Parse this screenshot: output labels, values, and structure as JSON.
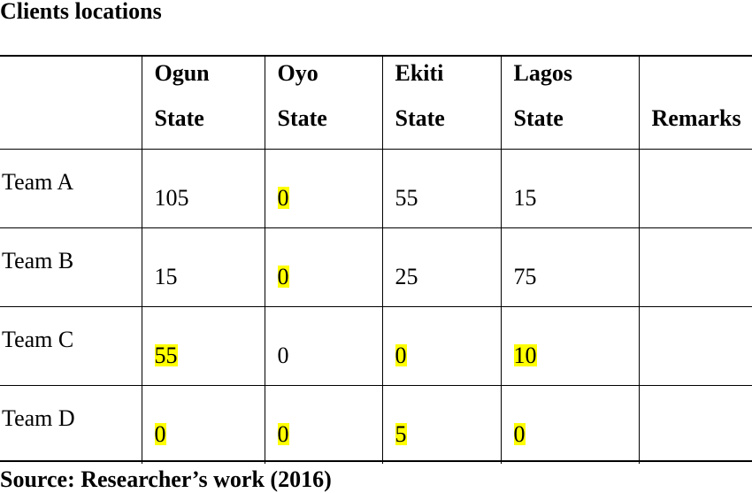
{
  "title": "Clients locations",
  "table": {
    "headers": [
      {
        "line1": "",
        "line2": ""
      },
      {
        "line1": "Ogun",
        "line2": "State"
      },
      {
        "line1": "Oyo",
        "line2": "State"
      },
      {
        "line1": "Ekiti",
        "line2": "State"
      },
      {
        "line1": "Lagos",
        "line2": "State"
      },
      {
        "line1": "",
        "line2": "Remarks"
      }
    ],
    "rows": [
      {
        "label": "Team A",
        "cells": [
          {
            "value": "105",
            "highlight": false
          },
          {
            "value": "0",
            "highlight": true
          },
          {
            "value": "55",
            "highlight": false
          },
          {
            "value": "15",
            "highlight": false
          }
        ],
        "remarks": ""
      },
      {
        "label": "Team B",
        "cells": [
          {
            "value": "15",
            "highlight": false
          },
          {
            "value": "0",
            "highlight": true
          },
          {
            "value": "25",
            "highlight": false
          },
          {
            "value": "75",
            "highlight": false
          }
        ],
        "remarks": ""
      },
      {
        "label": "Team C",
        "cells": [
          {
            "value": "55",
            "highlight": true
          },
          {
            "value": "0",
            "highlight": false
          },
          {
            "value": "0",
            "highlight": true
          },
          {
            "value": "10",
            "highlight": true
          }
        ],
        "remarks": ""
      },
      {
        "label": "Team D",
        "cells": [
          {
            "value": "0",
            "highlight": true
          },
          {
            "value": "0",
            "highlight": true
          },
          {
            "value": "5",
            "highlight": true
          },
          {
            "value": "0",
            "highlight": true
          }
        ],
        "remarks": ""
      }
    ]
  },
  "highlight_color": "#ffff00",
  "source": "Source: Researcher’s work (2016)"
}
